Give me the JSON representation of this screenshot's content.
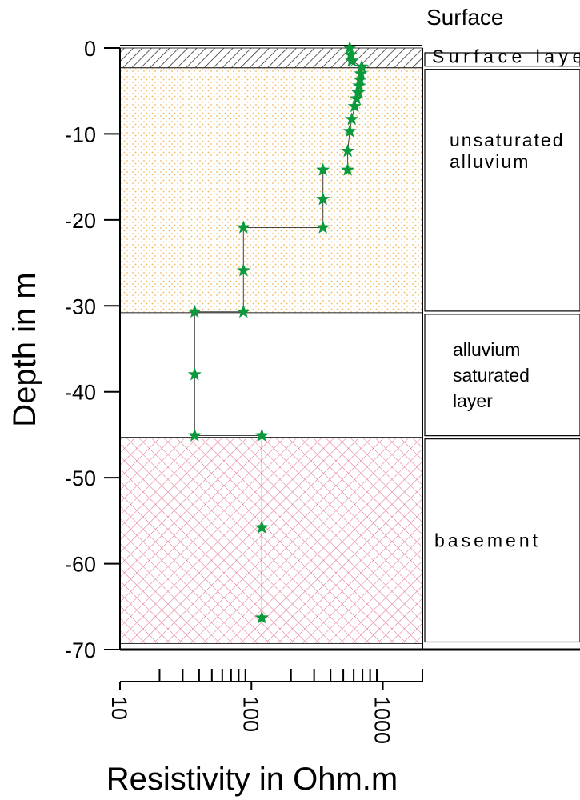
{
  "chart_data": {
    "type": "scatter",
    "title": "Surface",
    "xlabel": "Resistivity in Ohm.m",
    "ylabel": "Depth in m",
    "xscale": "log",
    "xlim": [
      10,
      2000
    ],
    "ylim": [
      -70,
      0
    ],
    "x_ticks": [
      {
        "value": 10,
        "label": "10"
      },
      {
        "value": 100,
        "label": "100"
      },
      {
        "value": 1000,
        "label": "1000"
      }
    ],
    "y_ticks": [
      {
        "value": 0,
        "label": "0"
      },
      {
        "value": -10,
        "label": "-10"
      },
      {
        "value": -20,
        "label": "-20"
      },
      {
        "value": -30,
        "label": "-30"
      },
      {
        "value": -40,
        "label": "-40"
      },
      {
        "value": -50,
        "label": "-50"
      },
      {
        "value": -60,
        "label": "-60"
      },
      {
        "value": -70,
        "label": "-70"
      }
    ],
    "grid": false,
    "series": [
      {
        "marker": "star",
        "color": "#0a9a3c",
        "points": [
          {
            "x": 560,
            "y": 0
          },
          {
            "x": 570,
            "y": -0.8
          },
          {
            "x": 580,
            "y": -1.5
          },
          {
            "x": 690,
            "y": -2.2
          },
          {
            "x": 680,
            "y": -3.0
          },
          {
            "x": 670,
            "y": -3.7
          },
          {
            "x": 660,
            "y": -4.4
          },
          {
            "x": 650,
            "y": -5.2
          },
          {
            "x": 630,
            "y": -5.9
          },
          {
            "x": 610,
            "y": -6.8
          },
          {
            "x": 580,
            "y": -8.3
          },
          {
            "x": 560,
            "y": -9.7
          },
          {
            "x": 540,
            "y": -12.0
          },
          {
            "x": 540,
            "y": -14.2
          },
          {
            "x": 350,
            "y": -14.2
          },
          {
            "x": 350,
            "y": -17.6
          },
          {
            "x": 350,
            "y": -20.9
          },
          {
            "x": 87,
            "y": -20.9
          },
          {
            "x": 87,
            "y": -25.9
          },
          {
            "x": 87,
            "y": -30.7
          },
          {
            "x": 37,
            "y": -30.7
          },
          {
            "x": 37,
            "y": -38.0
          },
          {
            "x": 37,
            "y": -45.1
          },
          {
            "x": 120,
            "y": -45.1
          },
          {
            "x": 120,
            "y": -55.8
          },
          {
            "x": 120,
            "y": -66.3
          }
        ]
      }
    ],
    "layers": [
      {
        "label": "Surface layer",
        "top": 0,
        "bottom": -2.3,
        "fill": "hatch",
        "color": "#333333"
      },
      {
        "label": "unsaturated alluvium",
        "top": -2.3,
        "bottom": -30.8,
        "fill": "dots",
        "color": "#f2b65a"
      },
      {
        "label": "alluvium saturated layer",
        "top": -30.8,
        "bottom": -45.3,
        "fill": "none",
        "color": "#ffffff"
      },
      {
        "label": "basement",
        "top": -45.3,
        "bottom": -69.3,
        "fill": "crosshatch",
        "color": "#e2728e"
      }
    ],
    "layer_label_lines": [
      [
        "Surface layer"
      ],
      [
        "unsaturated",
        "alluvium"
      ],
      [
        "alluvium",
        "saturated",
        "layer"
      ],
      [
        "basement"
      ]
    ]
  }
}
